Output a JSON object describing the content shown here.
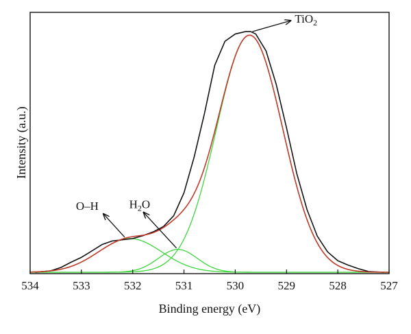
{
  "chart_data": {
    "type": "line",
    "title": "",
    "xlabel": "Binding energy (eV)",
    "ylabel": "Intensity (a.u.)",
    "x_reversed": true,
    "xlim": [
      534,
      527
    ],
    "ylim": [
      0,
      1.08
    ],
    "xticks": [
      "534",
      "533",
      "532",
      "531",
      "530",
      "529",
      "528",
      "527"
    ],
    "grid": false,
    "legend": "none",
    "colors": {
      "raw": "#111111",
      "envelope": "#c0392b",
      "components": "#3cd63c"
    },
    "components": [
      {
        "label": "TiO2",
        "center": 529.72,
        "height": 0.985,
        "fwhm": 1.52
      },
      {
        "label": "H2O",
        "center": 531.12,
        "height": 0.095,
        "fwhm": 0.9
      },
      {
        "label": "O–H",
        "center": 532.05,
        "height": 0.14,
        "fwhm": 1.45
      }
    ],
    "raw_spectrum": {
      "x": [
        533.9,
        533.6,
        533.4,
        533.2,
        533.0,
        532.8,
        532.6,
        532.4,
        532.2,
        532.0,
        531.8,
        531.6,
        531.4,
        531.2,
        531.0,
        530.8,
        530.6,
        530.4,
        530.2,
        530.0,
        529.8,
        529.7,
        529.6,
        529.4,
        529.2,
        529.0,
        528.8,
        528.6,
        528.4,
        528.2,
        528.0,
        527.8,
        527.6,
        527.4,
        527.1
      ],
      "y": [
        0.0,
        0.006,
        0.02,
        0.042,
        0.062,
        0.088,
        0.115,
        0.13,
        0.135,
        0.14,
        0.152,
        0.168,
        0.19,
        0.235,
        0.33,
        0.48,
        0.66,
        0.86,
        0.96,
        0.99,
        1.0,
        1.0,
        0.99,
        0.92,
        0.78,
        0.6,
        0.41,
        0.26,
        0.15,
        0.085,
        0.048,
        0.03,
        0.015,
        0.003,
        0.0
      ]
    },
    "annotations": [
      {
        "base": "TiO",
        "sub": "2",
        "point_x": 529.72,
        "point_y": 1.0
      },
      {
        "base": "H",
        "sub": "2",
        "tail": "O",
        "point_x": 531.12,
        "point_y": 0.095
      },
      {
        "base": "O–H",
        "point_x": 532.05,
        "point_y": 0.14
      }
    ]
  }
}
